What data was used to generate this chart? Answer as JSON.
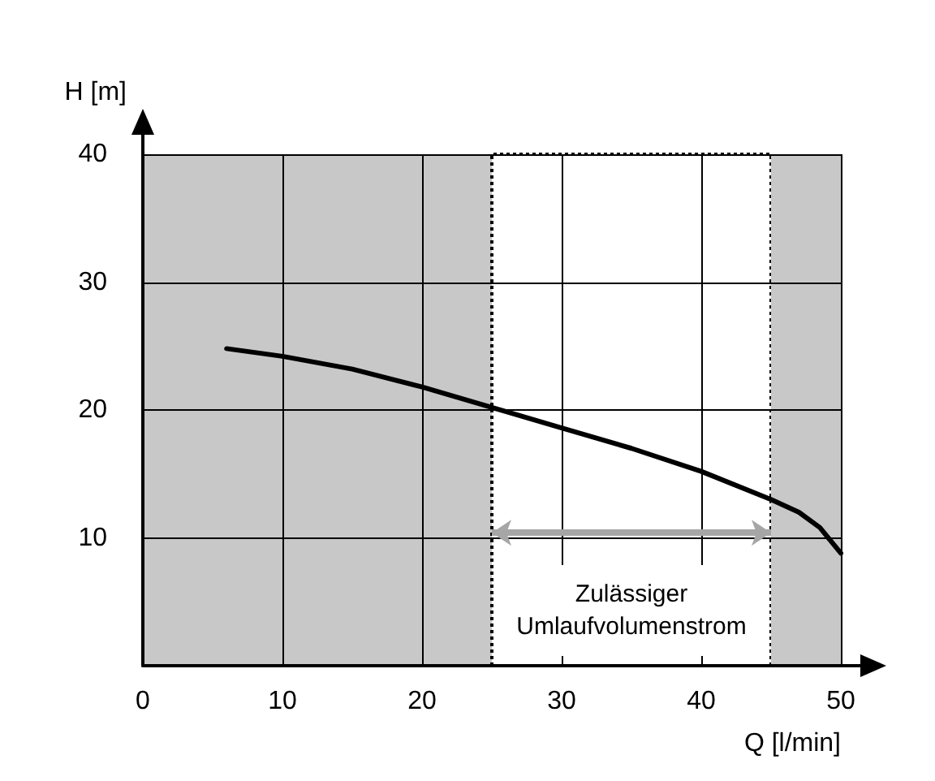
{
  "chart_data": {
    "type": "line",
    "xlabel": "Q [l/min]",
    "ylabel": "H [m]",
    "x": [
      6,
      10,
      15,
      20,
      25,
      30,
      35,
      40,
      45,
      47,
      48.5,
      50
    ],
    "series": [
      {
        "color": "#000000",
        "values": [
          24.8,
          24.2,
          23.2,
          21.8,
          20.2,
          18.6,
          17,
          15.2,
          13,
          12,
          10.8,
          8.8
        ]
      }
    ],
    "xlim": [
      0,
      50
    ],
    "xticks": [
      0,
      10,
      20,
      30,
      40,
      50
    ],
    "ylim": [
      0,
      40
    ],
    "yticks": [
      {
        "value": 0,
        "label": null
      },
      10,
      20,
      30,
      40
    ],
    "bands": [
      {
        "axis": "x",
        "from": 0,
        "to": 25,
        "color": "#c8c8c8"
      },
      {
        "axis": "x",
        "from": 25,
        "to": 45,
        "label": "Zulässiger\nUmlaufvolumenstrom",
        "color": "#ffffff"
      },
      {
        "axis": "x",
        "from": 45,
        "to": 50,
        "color": "#c8c8c8"
      }
    ],
    "grid": true,
    "marker": "none",
    "line_style": "solid"
  }
}
